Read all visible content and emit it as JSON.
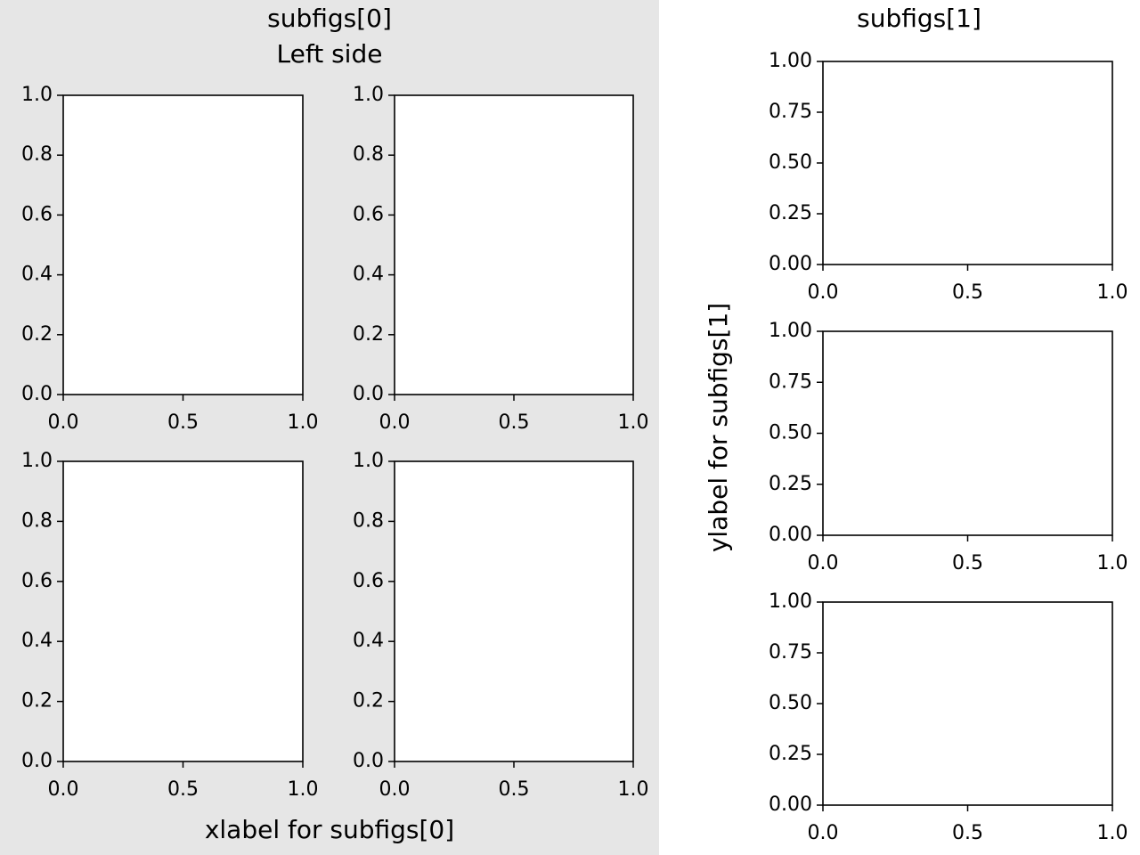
{
  "figure_texts": {
    "subfigures": [
      {
        "title": "subfigs[0]",
        "subtitle": "Left side",
        "xlabel": "xlabel for subfigs[0]",
        "background": "#e6e6e6"
      },
      {
        "title": "subfigs[1]",
        "ylabel": "ylabel for subfigs[1]",
        "background": "#ffffff"
      }
    ]
  },
  "chart_data": [
    {
      "type": "line",
      "xlim": [
        0,
        1
      ],
      "ylim": [
        0,
        1
      ],
      "xticks": [
        {
          "value": 0,
          "label": "0.0"
        },
        {
          "value": 0.5,
          "label": "0.5"
        },
        {
          "value": 1,
          "label": "1.0"
        }
      ],
      "yticks": [
        {
          "value": 0,
          "label": "0.0"
        },
        {
          "value": 0.2,
          "label": "0.2"
        },
        {
          "value": 0.4,
          "label": "0.4"
        },
        {
          "value": 0.6,
          "label": "0.6"
        },
        {
          "value": 0.8,
          "label": "0.8"
        },
        {
          "value": 1,
          "label": "1.0"
        }
      ]
    },
    {
      "type": "line",
      "xlim": [
        0,
        1
      ],
      "ylim": [
        0,
        1
      ],
      "xticks": [
        {
          "value": 0,
          "label": "0.0"
        },
        {
          "value": 0.5,
          "label": "0.5"
        },
        {
          "value": 1,
          "label": "1.0"
        }
      ],
      "yticks": [
        {
          "value": 0,
          "label": "0.0"
        },
        {
          "value": 0.2,
          "label": "0.2"
        },
        {
          "value": 0.4,
          "label": "0.4"
        },
        {
          "value": 0.6,
          "label": "0.6"
        },
        {
          "value": 0.8,
          "label": "0.8"
        },
        {
          "value": 1,
          "label": "1.0"
        }
      ]
    },
    {
      "type": "line",
      "xlim": [
        0,
        1
      ],
      "ylim": [
        0,
        1
      ],
      "xticks": [
        {
          "value": 0,
          "label": "0.0"
        },
        {
          "value": 0.5,
          "label": "0.5"
        },
        {
          "value": 1,
          "label": "1.0"
        }
      ],
      "yticks": [
        {
          "value": 0,
          "label": "0.0"
        },
        {
          "value": 0.2,
          "label": "0.2"
        },
        {
          "value": 0.4,
          "label": "0.4"
        },
        {
          "value": 0.6,
          "label": "0.6"
        },
        {
          "value": 0.8,
          "label": "0.8"
        },
        {
          "value": 1,
          "label": "1.0"
        }
      ]
    },
    {
      "type": "line",
      "xlim": [
        0,
        1
      ],
      "ylim": [
        0,
        1
      ],
      "xticks": [
        {
          "value": 0,
          "label": "0.0"
        },
        {
          "value": 0.5,
          "label": "0.5"
        },
        {
          "value": 1,
          "label": "1.0"
        }
      ],
      "yticks": [
        {
          "value": 0,
          "label": "0.0"
        },
        {
          "value": 0.2,
          "label": "0.2"
        },
        {
          "value": 0.4,
          "label": "0.4"
        },
        {
          "value": 0.6,
          "label": "0.6"
        },
        {
          "value": 0.8,
          "label": "0.8"
        },
        {
          "value": 1,
          "label": "1.0"
        }
      ]
    },
    {
      "type": "line",
      "xlim": [
        0,
        1
      ],
      "ylim": [
        0,
        1
      ],
      "xticks": [
        {
          "value": 0,
          "label": "0.0"
        },
        {
          "value": 0.5,
          "label": "0.5"
        },
        {
          "value": 1,
          "label": "1.0"
        }
      ],
      "yticks": [
        {
          "value": 0,
          "label": "0.00"
        },
        {
          "value": 0.25,
          "label": "0.25"
        },
        {
          "value": 0.5,
          "label": "0.50"
        },
        {
          "value": 0.75,
          "label": "0.75"
        },
        {
          "value": 1,
          "label": "1.00"
        }
      ]
    },
    {
      "type": "line",
      "xlim": [
        0,
        1
      ],
      "ylim": [
        0,
        1
      ],
      "xticks": [
        {
          "value": 0,
          "label": "0.0"
        },
        {
          "value": 0.5,
          "label": "0.5"
        },
        {
          "value": 1,
          "label": "1.0"
        }
      ],
      "yticks": [
        {
          "value": 0,
          "label": "0.00"
        },
        {
          "value": 0.25,
          "label": "0.25"
        },
        {
          "value": 0.5,
          "label": "0.50"
        },
        {
          "value": 0.75,
          "label": "0.75"
        },
        {
          "value": 1,
          "label": "1.00"
        }
      ]
    },
    {
      "type": "line",
      "xlim": [
        0,
        1
      ],
      "ylim": [
        0,
        1
      ],
      "xticks": [
        {
          "value": 0,
          "label": "0.0"
        },
        {
          "value": 0.5,
          "label": "0.5"
        },
        {
          "value": 1,
          "label": "1.0"
        }
      ],
      "yticks": [
        {
          "value": 0,
          "label": "0.00"
        },
        {
          "value": 0.25,
          "label": "0.25"
        },
        {
          "value": 0.5,
          "label": "0.50"
        },
        {
          "value": 0.75,
          "label": "0.75"
        },
        {
          "value": 1,
          "label": "1.00"
        }
      ]
    }
  ]
}
